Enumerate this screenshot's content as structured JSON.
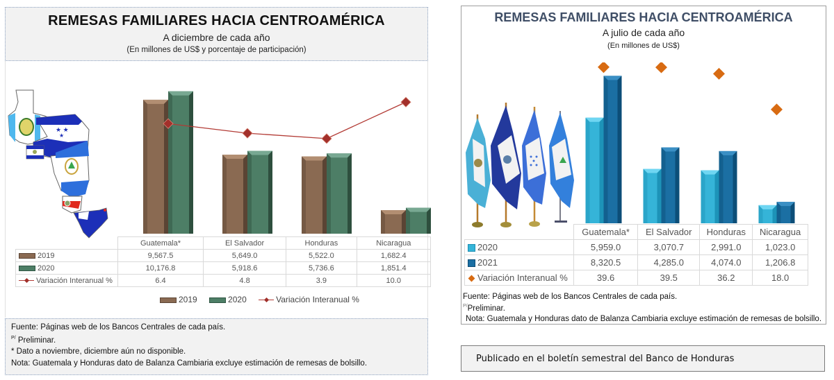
{
  "left_panel": {
    "title": "REMESAS FAMILIARES HACIA CENTROAMÉRICA",
    "subtitle": "A diciembre de cada año",
    "units": "(En millones de US$ y porcentaje de participación)",
    "map_image": "central-america-flags-map",
    "table": {
      "columns": [
        "Guatemala*",
        "El Salvador",
        "Honduras",
        "Nicaragua"
      ],
      "rows": [
        {
          "label": "2019",
          "values": [
            "9,567.5",
            "5,649.0",
            "5,522.0",
            "1,682.4"
          ]
        },
        {
          "label": "2020",
          "values": [
            "10,176.8",
            "5,918.6",
            "5,736.6",
            "1,851.4"
          ]
        },
        {
          "label": "Variación Interanual %",
          "values": [
            "6.4",
            "4.8",
            "3.9",
            "10.0"
          ]
        }
      ]
    },
    "legend": [
      "2019",
      "2020",
      "Variación Interanual %"
    ],
    "footer": {
      "source": "Fuente:  Páginas web de los Bancos Centrales de cada país.",
      "prelim_mark": "P/",
      "prelim": " Preliminar.",
      "note_star": "* Dato a noviembre, diciembre aún no disponible.",
      "note": " Nota: Guatemala y Honduras dato de Balanza Cambiaria excluye estimación de remesas de bolsillo."
    }
  },
  "right_panel": {
    "title": "REMESAS FAMILIARES HACIA CENTROAMÉRICA",
    "subtitle": "A julio de cada año",
    "units": "(En millones  de US$)",
    "flags_image": "central-america-flags-on-poles",
    "table": {
      "columns": [
        "Guatemala*",
        "El Salvador",
        "Honduras",
        "Nicaragua"
      ],
      "rows": [
        {
          "label": "2020",
          "values": [
            "5,959.0",
            "3,070.7",
            "2,991.0",
            "1,023.0"
          ]
        },
        {
          "label": "2021",
          "values": [
            "8,320.5",
            "4,285.0",
            "4,074.0",
            "1,206.8"
          ]
        },
        {
          "label": "Variación Interanual %",
          "values": [
            "39.6",
            "39.5",
            "36.2",
            "18.0"
          ]
        }
      ]
    },
    "notes": {
      "source": "Fuente: Páginas web de los Bancos Centrales de cada país.",
      "prelim_mark": "P/",
      "prelim": "Preliminar.",
      "note": "Nota: Guatemala y Honduras dato de Balanza Cambiaria excluye estimación de remesas de bolsillo."
    }
  },
  "published_note": "Publicado en el boletín semestral del Banco de Honduras",
  "colors": {
    "brown_2019": "#8a6a52",
    "green_2020": "#4d7e66",
    "line_red": "#b23a34",
    "light_blue_2020": "#35b4d8",
    "dark_blue_2021": "#1b6fa3",
    "orange_marker": "#d86b12"
  },
  "chart_data": [
    {
      "type": "bar",
      "title": "REMESAS FAMILIARES HACIA CENTROAMÉRICA",
      "subtitle": "A diciembre de cada año",
      "categories": [
        "Guatemala*",
        "El Salvador",
        "Honduras",
        "Nicaragua"
      ],
      "series": [
        {
          "name": "2019",
          "kind": "bar",
          "values": [
            9567.5,
            5649.0,
            5522.0,
            1682.4
          ]
        },
        {
          "name": "2020",
          "kind": "bar",
          "values": [
            10176.8,
            5918.6,
            5736.6,
            1851.4
          ]
        },
        {
          "name": "Variación Interanual %",
          "kind": "line",
          "axis": "secondary",
          "values": [
            6.4,
            4.8,
            3.9,
            10.0
          ]
        }
      ],
      "ylim": [
        0,
        11000
      ],
      "y2lim": [
        -12,
        12
      ],
      "legend": "bottom",
      "grid": false
    },
    {
      "type": "bar",
      "title": "REMESAS FAMILIARES HACIA CENTROAMÉRICA",
      "subtitle": "A julio de cada año",
      "categories": [
        "Guatemala*",
        "El Salvador",
        "Honduras",
        "Nicaragua"
      ],
      "series": [
        {
          "name": "2020",
          "kind": "bar",
          "values": [
            5959.0,
            3070.7,
            2991.0,
            1023.0
          ]
        },
        {
          "name": "2021",
          "kind": "bar",
          "values": [
            8320.5,
            4285.0,
            4074.0,
            1206.8
          ]
        },
        {
          "name": "Variación Interanual %",
          "kind": "marker",
          "axis": "secondary",
          "values": [
            39.6,
            39.5,
            36.2,
            18.0
          ]
        }
      ],
      "ylim": [
        0,
        9000
      ],
      "y2lim": [
        -40,
        42
      ],
      "legend": "none",
      "grid": false
    }
  ]
}
